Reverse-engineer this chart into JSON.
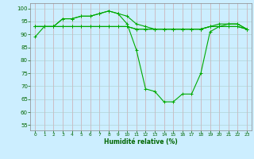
{
  "xlabel": "Humidité relative (%)",
  "bg_color": "#cceeff",
  "grid_color": "#aacccc",
  "line_color": "#00aa00",
  "xlim": [
    -0.5,
    23.5
  ],
  "ylim": [
    53,
    102
  ],
  "yticks": [
    55,
    60,
    65,
    70,
    75,
    80,
    85,
    90,
    95,
    100
  ],
  "xticks": [
    0,
    1,
    2,
    3,
    4,
    5,
    6,
    7,
    8,
    9,
    10,
    11,
    12,
    13,
    14,
    15,
    16,
    17,
    18,
    19,
    20,
    21,
    22,
    23
  ],
  "series": [
    [
      89,
      93,
      93,
      96,
      96,
      97,
      97,
      98,
      99,
      98,
      94,
      84,
      69,
      68,
      64,
      64,
      67,
      67,
      75,
      91,
      93,
      94,
      94,
      92
    ],
    [
      93,
      93,
      93,
      96,
      96,
      97,
      97,
      98,
      99,
      98,
      97,
      94,
      93,
      92,
      92,
      92,
      92,
      92,
      92,
      93,
      94,
      94,
      94,
      92
    ],
    [
      93,
      93,
      93,
      93,
      93,
      93,
      93,
      93,
      93,
      93,
      93,
      92,
      92,
      92,
      92,
      92,
      92,
      92,
      92,
      93,
      93,
      93,
      93,
      92
    ],
    [
      93,
      93,
      93,
      93,
      93,
      93,
      93,
      93,
      93,
      93,
      93,
      92,
      92,
      92,
      92,
      92,
      92,
      92,
      92,
      93,
      93,
      93,
      93,
      92
    ]
  ]
}
